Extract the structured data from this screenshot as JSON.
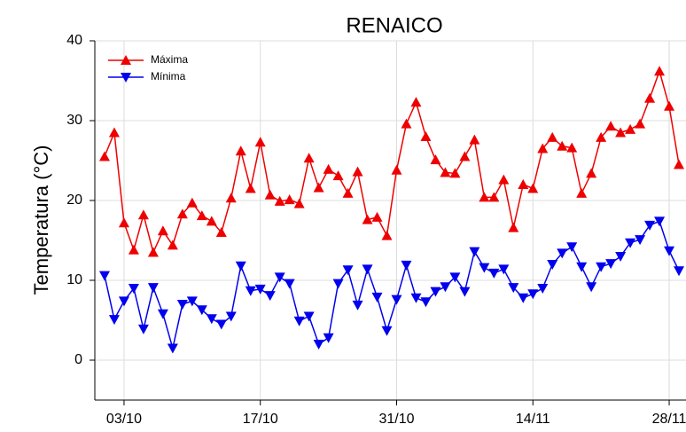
{
  "chart_data": {
    "type": "line",
    "title": "RENAICO",
    "y_label": "Temperatura (°C)",
    "x": [
      "01/10",
      "02/10",
      "03/10",
      "04/10",
      "05/10",
      "06/10",
      "07/10",
      "08/10",
      "09/10",
      "10/10",
      "11/10",
      "12/10",
      "13/10",
      "14/10",
      "15/10",
      "16/10",
      "17/10",
      "18/10",
      "19/10",
      "20/10",
      "21/10",
      "22/10",
      "23/10",
      "24/10",
      "25/10",
      "26/10",
      "27/10",
      "28/10",
      "29/10",
      "30/10",
      "31/10",
      "01/11",
      "02/11",
      "03/11",
      "04/11",
      "05/11",
      "06/11",
      "07/11",
      "08/11",
      "09/11",
      "10/11",
      "11/11",
      "12/11",
      "13/11",
      "14/11",
      "15/11",
      "16/11",
      "17/11",
      "18/11",
      "19/11",
      "20/11",
      "21/11",
      "22/11",
      "23/11",
      "24/11",
      "25/11",
      "26/11",
      "27/11",
      "28/11",
      "29/11"
    ],
    "series": [
      {
        "name": "Máxima",
        "color": "#ee0000",
        "marker": "triangle-up",
        "values": [
          25.5,
          28.5,
          17.2,
          13.8,
          18.2,
          13.5,
          16.2,
          14.4,
          18.3,
          19.7,
          18.1,
          17.4,
          16.0,
          20.3,
          26.2,
          21.5,
          27.3,
          20.7,
          19.9,
          20.1,
          19.6,
          25.3,
          21.6,
          23.9,
          23.1,
          20.9,
          23.6,
          17.6,
          17.9,
          15.6,
          23.8,
          29.6,
          32.3,
          28.0,
          25.1,
          23.5,
          23.4,
          25.5,
          27.6,
          20.4,
          20.4,
          22.6,
          16.6,
          22.0,
          21.5,
          26.5,
          27.9,
          26.8,
          26.6,
          20.9,
          23.4,
          27.9,
          29.3,
          28.5,
          28.9,
          29.6,
          32.8,
          36.2,
          31.8,
          24.5
        ]
      },
      {
        "name": "Mínima",
        "color": "#0000ee",
        "marker": "triangle-down",
        "values": [
          10.6,
          5.1,
          7.4,
          9.0,
          3.9,
          9.1,
          5.8,
          1.5,
          7.0,
          7.4,
          6.3,
          5.2,
          4.5,
          5.5,
          11.8,
          8.7,
          8.9,
          8.1,
          10.4,
          9.6,
          4.9,
          5.5,
          2.0,
          2.8,
          9.6,
          11.3,
          6.9,
          11.4,
          7.9,
          3.7,
          7.6,
          11.9,
          7.8,
          7.3,
          8.6,
          9.2,
          10.4,
          8.6,
          13.6,
          11.6,
          10.9,
          11.4,
          9.1,
          7.8,
          8.3,
          9.0,
          12.0,
          13.4,
          14.2,
          11.7,
          9.2,
          11.7,
          12.1,
          13.0,
          14.7,
          15.1,
          16.9,
          17.4,
          13.7,
          11.2
        ]
      }
    ],
    "xlim": [
      "30/09",
      "30/11"
    ],
    "xticks": [
      "03/10",
      "17/10",
      "31/10",
      "14/11",
      "28/11"
    ],
    "ylim": [
      -5,
      40
    ],
    "yticks": [
      0,
      10,
      20,
      30,
      40
    ],
    "grid": true,
    "legend": "upper left"
  }
}
